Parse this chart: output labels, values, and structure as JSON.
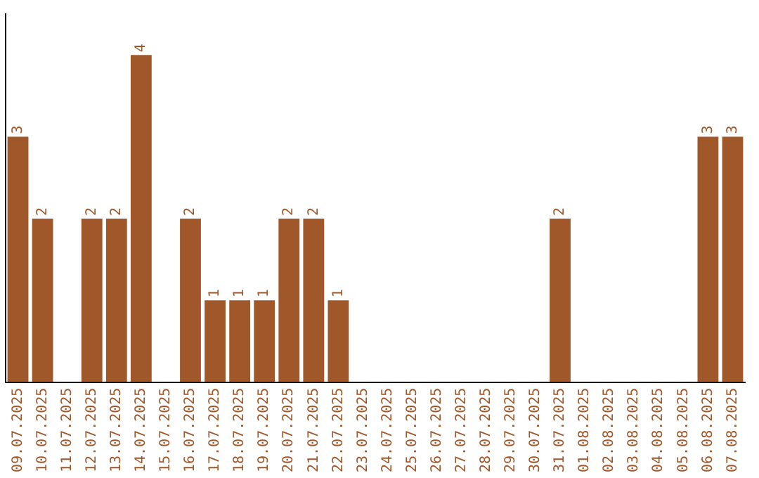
{
  "chart_data": {
    "type": "bar",
    "categories": [
      "09.07.2025",
      "10.07.2025",
      "11.07.2025",
      "12.07.2025",
      "13.07.2025",
      "14.07.2025",
      "15.07.2025",
      "16.07.2025",
      "17.07.2025",
      "18.07.2025",
      "19.07.2025",
      "20.07.2025",
      "21.07.2025",
      "22.07.2025",
      "23.07.2025",
      "24.07.2025",
      "25.07.2025",
      "26.07.2025",
      "27.07.2025",
      "28.07.2025",
      "29.07.2025",
      "30.07.2025",
      "31.07.2025",
      "01.08.2025",
      "02.08.2025",
      "03.08.2025",
      "04.08.2025",
      "05.08.2025",
      "06.08.2025",
      "07.08.2025"
    ],
    "values": [
      3,
      2,
      0,
      2,
      2,
      4,
      0,
      2,
      1,
      1,
      1,
      2,
      2,
      1,
      0,
      0,
      0,
      0,
      0,
      0,
      0,
      0,
      2,
      0,
      0,
      0,
      0,
      0,
      3,
      3
    ],
    "value_labels": [
      "3",
      "2",
      null,
      "2",
      "2",
      "4",
      null,
      "2",
      "1",
      "1",
      "1",
      "2",
      "2",
      "1",
      null,
      null,
      null,
      null,
      null,
      null,
      null,
      null,
      "2",
      null,
      null,
      null,
      null,
      null,
      "3",
      "3"
    ],
    "color": "#a0582a",
    "grid": false,
    "legend": false,
    "tick_labels": "x"
  }
}
